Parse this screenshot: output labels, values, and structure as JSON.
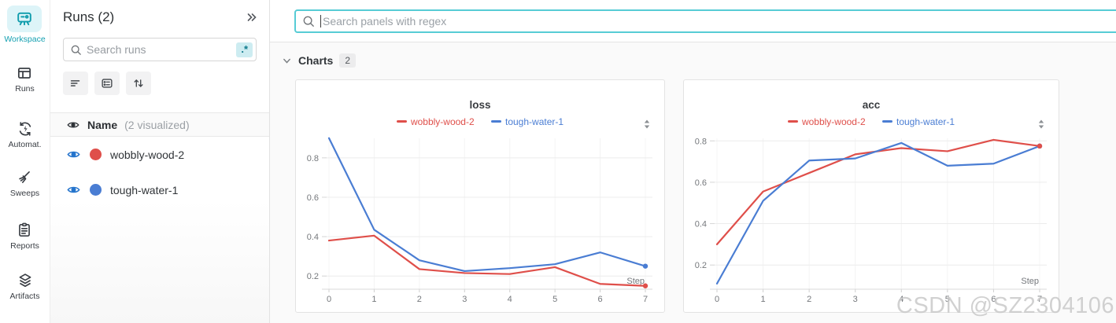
{
  "iconbar": {
    "items": [
      {
        "label": "Workspace",
        "icon": "workspace-icon",
        "active": true
      },
      {
        "label": "Runs",
        "icon": "runs-icon",
        "active": false
      },
      {
        "label": "Automat.",
        "icon": "automations-icon",
        "active": false
      },
      {
        "label": "Sweeps",
        "icon": "sweeps-icon",
        "active": false
      },
      {
        "label": "Reports",
        "icon": "reports-icon",
        "active": false
      },
      {
        "label": "Artifacts",
        "icon": "artifacts-icon",
        "active": false
      }
    ]
  },
  "runs_panel": {
    "title": "Runs (2)",
    "search_placeholder": "Search runs",
    "regex_badge": ".*",
    "table_header": {
      "name_label": "Name",
      "visualized_label": "(2 visualized)"
    },
    "runs": [
      {
        "name": "wobbly-wood-2",
        "color": "#df4f4a"
      },
      {
        "name": "tough-water-1",
        "color": "#4a7dd3"
      }
    ]
  },
  "main": {
    "search_placeholder": "Search panels with regex",
    "section": {
      "label": "Charts",
      "count": "2"
    }
  },
  "watermark": "CSDN @SZ2304106",
  "colors": {
    "accent_teal": "#57ccd5",
    "workspace_teal": "#0f9cac",
    "run_red": "#df4f4a",
    "run_blue": "#4a7dd3",
    "eye_blue": "#2574cc"
  },
  "chart_data": [
    {
      "type": "line",
      "title": "loss",
      "xlabel": "Step",
      "ylabel": "",
      "x": [
        0,
        1,
        2,
        3,
        4,
        5,
        6,
        7
      ],
      "series": [
        {
          "name": "wobbly-wood-2",
          "color": "#df4f4a",
          "values": [
            0.38,
            0.405,
            0.235,
            0.215,
            0.21,
            0.245,
            0.16,
            0.15
          ]
        },
        {
          "name": "tough-water-1",
          "color": "#4a7dd3",
          "values": [
            0.9,
            0.435,
            0.28,
            0.225,
            0.24,
            0.26,
            0.32,
            0.25
          ]
        }
      ],
      "ylim": [
        0.133,
        0.907
      ],
      "yticks": [
        0.2,
        0.4,
        0.6,
        0.8
      ],
      "grid": true,
      "legend_position": "top"
    },
    {
      "type": "line",
      "title": "acc",
      "xlabel": "Step",
      "ylabel": "",
      "x": [
        0,
        1,
        2,
        3,
        4,
        5,
        6,
        7
      ],
      "series": [
        {
          "name": "wobbly-wood-2",
          "color": "#df4f4a",
          "values": [
            0.3,
            0.555,
            0.645,
            0.735,
            0.765,
            0.75,
            0.805,
            0.775
          ]
        },
        {
          "name": "tough-water-1",
          "color": "#4a7dd3",
          "values": [
            0.11,
            0.51,
            0.705,
            0.715,
            0.79,
            0.68,
            0.69,
            0.775
          ]
        }
      ],
      "ylim": [
        0.083,
        0.82
      ],
      "yticks": [
        0.2,
        0.4,
        0.6,
        0.8
      ],
      "grid": true,
      "legend_position": "top"
    }
  ]
}
